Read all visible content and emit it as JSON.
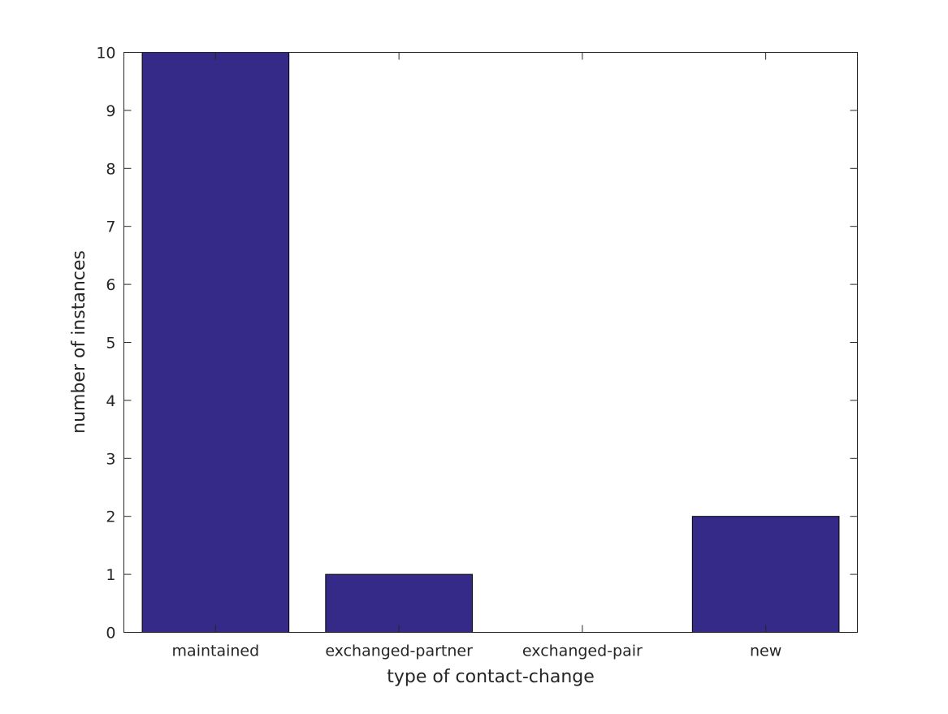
{
  "chart_data": {
    "type": "bar",
    "title": "",
    "xlabel": "type of contact-change",
    "ylabel": "number of instances",
    "categories": [
      "maintained",
      "exchanged-partner",
      "exchanged-pair",
      "new"
    ],
    "values": [
      10,
      1,
      0,
      2
    ],
    "ylim": [
      0,
      10
    ],
    "yticks": [
      "0",
      "1",
      "2",
      "3",
      "4",
      "5",
      "6",
      "7",
      "8",
      "9",
      "10"
    ],
    "grid": false,
    "legend": "none",
    "colors": {
      "bar_fill": "#352a87",
      "bar_stroke": "#000000",
      "axis": "#262626",
      "background": "#ffffff"
    }
  }
}
